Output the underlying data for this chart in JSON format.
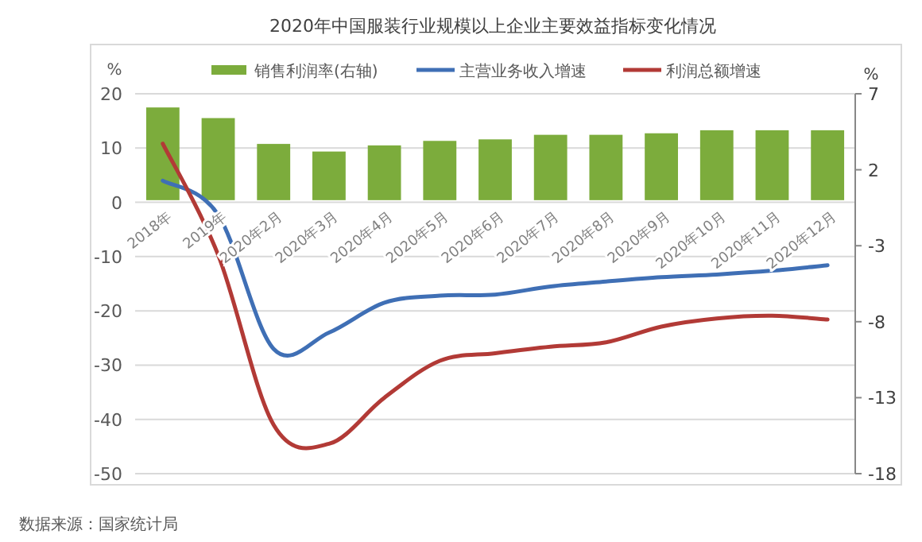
{
  "chart_data": {
    "type": "bar",
    "title": "2020年中国服装行业规模以上企业主要效益指标变化情况",
    "categories": [
      "2018年",
      "2019年",
      "2020年2月",
      "2020年3月",
      "2020年4月",
      "2020年5月",
      "2020年6月",
      "2020年7月",
      "2020年8月",
      "2020年9月",
      "2020年10月",
      "2020年11月",
      "2020年12月"
    ],
    "series": [
      {
        "name": "销售利润率(右轴)",
        "axis": "y2",
        "color": "#7cac3c",
        "values": [
          6.1,
          5.4,
          3.7,
          3.2,
          3.6,
          3.9,
          4.0,
          4.3,
          4.3,
          4.4,
          4.6,
          4.6,
          4.6
        ]
      },
      {
        "name": "主营业务收入增速",
        "type": "line",
        "color": "#3f6fb5",
        "values": [
          4,
          -2.3,
          -27,
          -24,
          -18.5,
          -17.2,
          -17,
          -15.5,
          -14.6,
          -13.8,
          -13.3,
          -12.6,
          -11.6
        ]
      },
      {
        "name": "利润总额增速",
        "type": "line",
        "color": "#b23a36",
        "values": [
          10.8,
          -9.7,
          -41,
          -44.5,
          -36,
          -29.2,
          -27.8,
          -26.6,
          -25.8,
          -22.9,
          -21.4,
          -20.9,
          -21.6
        ]
      }
    ],
    "ylabel": "%",
    "y2label": "%",
    "ylim": [
      -50,
      20
    ],
    "yticks": [
      -50,
      -40,
      -30,
      -20,
      -10,
      0,
      10,
      20
    ],
    "y2lim": [
      -18,
      7
    ],
    "y2ticks": [
      -18,
      -13,
      -8,
      -3,
      2,
      7
    ],
    "grid": "y",
    "legend": "top",
    "annotations": [
      "数据来源：国家统计局"
    ]
  }
}
